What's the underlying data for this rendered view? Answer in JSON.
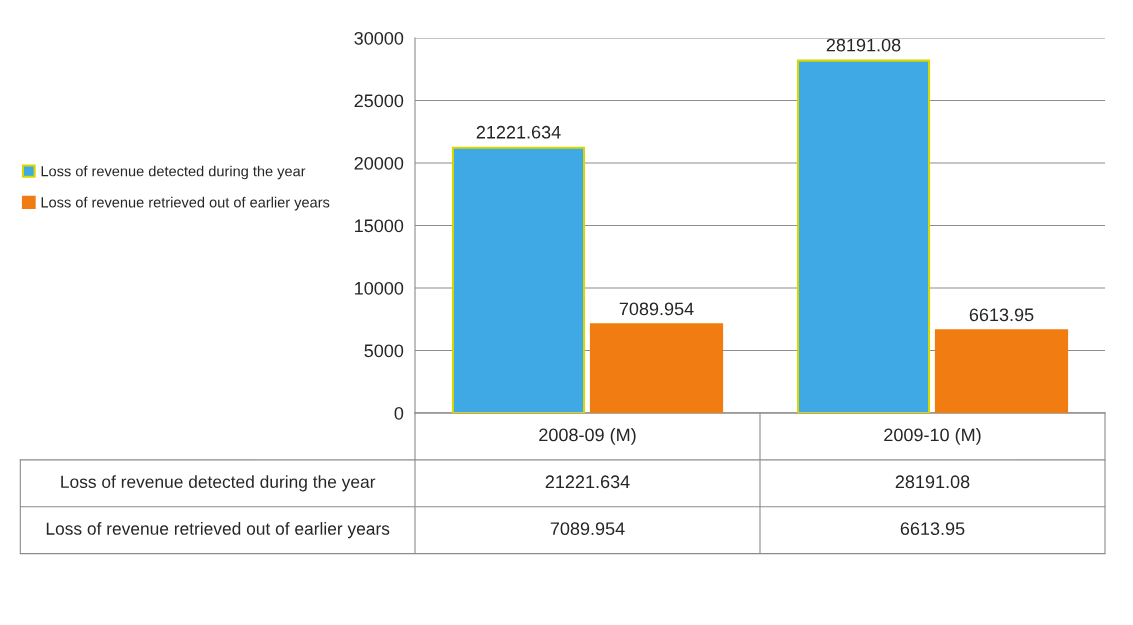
{
  "chart_data": {
    "type": "bar",
    "categories": [
      "2008-09 (M)",
      "2009-10 (M)"
    ],
    "series": [
      {
        "name": "Loss of revenue detected during the year",
        "color": "#3fa9e6",
        "values": [
          21221.634,
          28191.08
        ]
      },
      {
        "name": "Loss of revenue retrieved out of earlier years",
        "color": "#f07c12",
        "values": [
          7089.954,
          6613.95
        ]
      }
    ],
    "ylim": [
      0,
      30000
    ],
    "yticks": [
      0,
      5000,
      10000,
      15000,
      20000,
      25000,
      30000
    ],
    "grid": "y",
    "legend": "left",
    "data_labels": true,
    "annotations": [
      "21221.634",
      "28191.08",
      "7089.954",
      "6613.95"
    ]
  }
}
